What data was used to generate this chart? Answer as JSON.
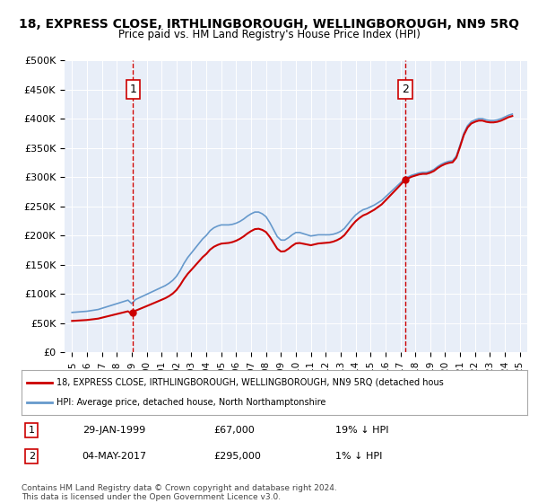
{
  "title": "18, EXPRESS CLOSE, IRTHLINGBOROUGH, WELLINGBOROUGH, NN9 5RQ",
  "subtitle": "Price paid vs. HM Land Registry's House Price Index (HPI)",
  "legend_line1": "18, EXPRESS CLOSE, IRTHLINGBOROUGH, WELLINGBOROUGH, NN9 5RQ (detached hous",
  "legend_line2": "HPI: Average price, detached house, North Northamptonshire",
  "footnote": "Contains HM Land Registry data © Crown copyright and database right 2024.\nThis data is licensed under the Open Government Licence v3.0.",
  "transactions": [
    {
      "num": 1,
      "date": "29-JAN-1999",
      "price": 67000,
      "hpi_diff": "19% ↓ HPI",
      "x_year": 1999.08
    },
    {
      "num": 2,
      "date": "04-MAY-2017",
      "price": 295000,
      "hpi_diff": "1% ↓ HPI",
      "x_year": 2017.34
    }
  ],
  "hpi_line_color": "#6699cc",
  "price_line_color": "#cc0000",
  "dashed_line_color": "#cc0000",
  "background_color": "#e8eef8",
  "plot_bg_color": "#e8eef8",
  "ylim": [
    0,
    500000
  ],
  "yticks": [
    0,
    50000,
    100000,
    150000,
    200000,
    250000,
    300000,
    350000,
    400000,
    450000,
    500000
  ],
  "ytick_labels": [
    "£0",
    "£50K",
    "£100K",
    "£150K",
    "£200K",
    "£250K",
    "£300K",
    "£350K",
    "£400K",
    "£450K",
    "£500K"
  ],
  "xlim_start": 1994.5,
  "xlim_end": 2025.5,
  "xticks": [
    1995,
    1996,
    1997,
    1998,
    1999,
    2000,
    2001,
    2002,
    2003,
    2004,
    2005,
    2006,
    2007,
    2008,
    2009,
    2010,
    2011,
    2012,
    2013,
    2014,
    2015,
    2016,
    2017,
    2018,
    2019,
    2020,
    2021,
    2022,
    2023,
    2024,
    2025
  ],
  "hpi_data": {
    "years": [
      1995,
      1995.25,
      1995.5,
      1995.75,
      1996,
      1996.25,
      1996.5,
      1996.75,
      1997,
      1997.25,
      1997.5,
      1997.75,
      1998,
      1998.25,
      1998.5,
      1998.75,
      1999,
      1999.25,
      1999.5,
      1999.75,
      2000,
      2000.25,
      2000.5,
      2000.75,
      2001,
      2001.25,
      2001.5,
      2001.75,
      2002,
      2002.25,
      2002.5,
      2002.75,
      2003,
      2003.25,
      2003.5,
      2003.75,
      2004,
      2004.25,
      2004.5,
      2004.75,
      2005,
      2005.25,
      2005.5,
      2005.75,
      2006,
      2006.25,
      2006.5,
      2006.75,
      2007,
      2007.25,
      2007.5,
      2007.75,
      2008,
      2008.25,
      2008.5,
      2008.75,
      2009,
      2009.25,
      2009.5,
      2009.75,
      2010,
      2010.25,
      2010.5,
      2010.75,
      2011,
      2011.25,
      2011.5,
      2011.75,
      2012,
      2012.25,
      2012.5,
      2012.75,
      2013,
      2013.25,
      2013.5,
      2013.75,
      2014,
      2014.25,
      2014.5,
      2014.75,
      2015,
      2015.25,
      2015.5,
      2015.75,
      2016,
      2016.25,
      2016.5,
      2016.75,
      2017,
      2017.25,
      2017.5,
      2017.75,
      2018,
      2018.25,
      2018.5,
      2018.75,
      2019,
      2019.25,
      2019.5,
      2019.75,
      2020,
      2020.25,
      2020.5,
      2020.75,
      2021,
      2021.25,
      2021.5,
      2021.75,
      2022,
      2022.25,
      2022.5,
      2022.75,
      2023,
      2023.25,
      2023.5,
      2023.75,
      2024,
      2024.25,
      2024.5
    ],
    "values": [
      68000,
      68500,
      69000,
      69500,
      70000,
      71000,
      72000,
      73000,
      75000,
      77000,
      79000,
      81000,
      83000,
      85000,
      87000,
      89000,
      83000,
      90000,
      93000,
      96000,
      99000,
      102000,
      105000,
      108000,
      111000,
      114000,
      118000,
      123000,
      130000,
      140000,
      152000,
      162000,
      170000,
      178000,
      186000,
      194000,
      200000,
      208000,
      213000,
      216000,
      218000,
      218000,
      218000,
      219000,
      221000,
      224000,
      228000,
      233000,
      237000,
      240000,
      240000,
      237000,
      232000,
      222000,
      210000,
      198000,
      192000,
      192000,
      196000,
      201000,
      205000,
      205000,
      203000,
      201000,
      199000,
      200000,
      201000,
      201000,
      201000,
      201000,
      202000,
      204000,
      207000,
      212000,
      220000,
      228000,
      235000,
      240000,
      244000,
      246000,
      249000,
      252000,
      256000,
      260000,
      266000,
      272000,
      278000,
      284000,
      290000,
      296000,
      300000,
      303000,
      305000,
      307000,
      308000,
      308000,
      310000,
      313000,
      318000,
      322000,
      325000,
      327000,
      328000,
      336000,
      355000,
      375000,
      388000,
      395000,
      398000,
      400000,
      400000,
      398000,
      397000,
      397000,
      398000,
      400000,
      403000,
      406000,
      408000
    ]
  },
  "price_data": {
    "years": [
      1999.08,
      2017.34
    ],
    "values": [
      67000,
      295000
    ]
  }
}
